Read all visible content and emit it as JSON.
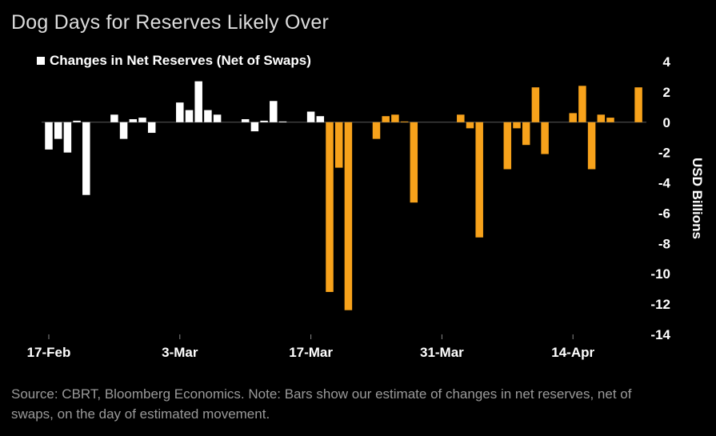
{
  "chart_data": {
    "type": "bar",
    "title": "Dog Days for Reserves Likely Over",
    "legend": "Changes in Net Reserves (Net of Swaps)",
    "ylabel": "USD Billions",
    "xlabel": "",
    "ylim": [
      -14,
      4
    ],
    "yticks": [
      4,
      2,
      0,
      -2,
      -4,
      -6,
      -8,
      -10,
      -12,
      -14
    ],
    "x_ticks": [
      {
        "index": 0,
        "label": "17-Feb"
      },
      {
        "index": 14,
        "label": "3-Mar"
      },
      {
        "index": 28,
        "label": "17-Mar"
      },
      {
        "index": 42,
        "label": "31-Mar"
      },
      {
        "index": 56,
        "label": "14-Apr"
      }
    ],
    "colors": {
      "actual": "#ffffff",
      "estimate": "#f7a21b"
    },
    "values": [
      -1.8,
      -1.1,
      -2.0,
      0.1,
      -4.8,
      null,
      null,
      0.5,
      -1.1,
      0.2,
      0.3,
      -0.7,
      null,
      null,
      1.3,
      0.8,
      2.7,
      0.8,
      0.5,
      null,
      null,
      0.2,
      -0.6,
      0.1,
      1.4,
      0.05,
      null,
      null,
      0.7,
      0.4,
      -11.2,
      -3.0,
      -12.4,
      null,
      null,
      -1.1,
      0.4,
      0.5,
      0.05,
      -5.3,
      null,
      null,
      null,
      null,
      0.5,
      -0.4,
      -7.6,
      null,
      null,
      -3.1,
      -0.4,
      -1.5,
      2.3,
      -2.1,
      null,
      null,
      0.6,
      2.4,
      -3.1,
      0.5,
      0.3,
      null,
      null,
      2.3
    ],
    "series_type": [
      "a",
      "a",
      "a",
      "a",
      "a",
      null,
      null,
      "a",
      "a",
      "a",
      "a",
      "a",
      null,
      null,
      "a",
      "a",
      "a",
      "a",
      "a",
      null,
      null,
      "a",
      "a",
      "a",
      "a",
      "a",
      null,
      null,
      "a",
      "a",
      "e",
      "e",
      "e",
      null,
      null,
      "e",
      "e",
      "e",
      "e",
      "e",
      null,
      null,
      null,
      null,
      "e",
      "e",
      "e",
      null,
      null,
      "e",
      "e",
      "e",
      "e",
      "e",
      null,
      null,
      "e",
      "e",
      "e",
      "e",
      "e",
      null,
      null,
      "e"
    ]
  },
  "source": "Source: CBRT, Bloomberg Economics. Note: Bars show our estimate of changes in net reserves, net of swaps, on the day of estimated movement."
}
